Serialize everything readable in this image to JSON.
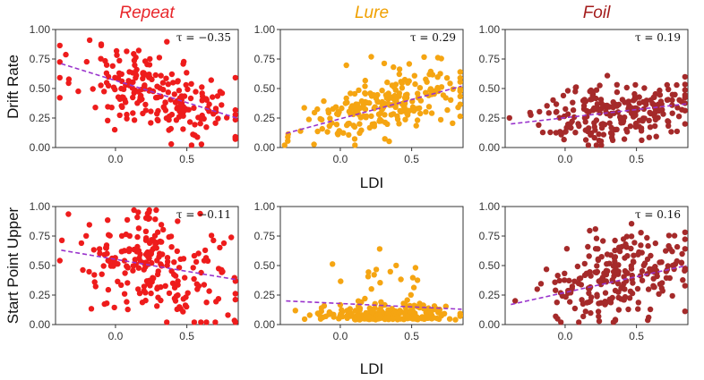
{
  "figure": {
    "row_labels": [
      "Drift Rate",
      "Start Point Upper"
    ],
    "x_label_mid": "LDI",
    "x_label_bottom": "LDI"
  },
  "chart_data": [
    {
      "type": "scatter",
      "row": "Drift Rate",
      "column": "Repeat",
      "title": "Repeat",
      "title_color": "#e8262b",
      "point_color": "#ee1c1c",
      "ylabel": "Drift Rate",
      "xlabel": "",
      "tau_label": "τ = −0.35",
      "xlim": [
        -0.42,
        0.86
      ],
      "ylim": [
        0,
        1
      ],
      "xticks": [
        "0.0",
        "0.5"
      ],
      "yticks": [
        "0.00",
        "0.25",
        "0.50",
        "0.75",
        "1.00"
      ],
      "trend": {
        "x": [
          -0.38,
          0.85
        ],
        "y": [
          0.71,
          0.25
        ]
      },
      "n_points": 220,
      "seed": 11,
      "x_center": 0.3,
      "x_spread": 0.28,
      "noise": 0.17,
      "skew": 0
    },
    {
      "type": "scatter",
      "row": "Drift Rate",
      "column": "Lure",
      "title": "Lure",
      "title_color": "#f0a000",
      "point_color": "#f5a512",
      "ylabel": "",
      "xlabel": "",
      "tau_label": "τ = 0.29",
      "xlim": [
        -0.42,
        0.86
      ],
      "ylim": [
        0,
        1
      ],
      "xticks": [
        "0.0",
        "0.5"
      ],
      "yticks": [
        "0.00",
        "0.25",
        "0.50",
        "0.75",
        "1.00"
      ],
      "trend": {
        "x": [
          -0.38,
          0.85
        ],
        "y": [
          0.12,
          0.52
        ]
      },
      "n_points": 230,
      "seed": 23,
      "x_center": 0.32,
      "x_spread": 0.27,
      "noise": 0.12,
      "skew": 1
    },
    {
      "type": "scatter",
      "row": "Drift Rate",
      "column": "Foil",
      "title": "Foil",
      "title_color": "#a31b1b",
      "point_color": "#a52a2a",
      "ylabel": "",
      "xlabel": "",
      "tau_label": "τ = 0.19",
      "xlim": [
        -0.42,
        0.86
      ],
      "ylim": [
        0,
        1
      ],
      "xticks": [
        "0.0",
        "0.5"
      ],
      "yticks": [
        "0.00",
        "0.25",
        "0.50",
        "0.75",
        "1.00"
      ],
      "trend": {
        "x": [
          -0.38,
          0.85
        ],
        "y": [
          0.2,
          0.37
        ]
      },
      "n_points": 230,
      "seed": 37,
      "x_center": 0.35,
      "x_spread": 0.25,
      "noise": 0.13,
      "skew": 0
    },
    {
      "type": "scatter",
      "row": "Start Point Upper",
      "column": "Repeat",
      "title": "",
      "title_color": "#e8262b",
      "point_color": "#ee1c1c",
      "ylabel": "Start Point Upper",
      "xlabel": "LDI",
      "tau_label": "τ = −0.11",
      "xlim": [
        -0.42,
        0.86
      ],
      "ylim": [
        0,
        1
      ],
      "xticks": [
        "0.0",
        "0.5"
      ],
      "yticks": [
        "0.00",
        "0.25",
        "0.50",
        "0.75",
        "1.00"
      ],
      "trend": {
        "x": [
          -0.38,
          0.85
        ],
        "y": [
          0.63,
          0.38
        ]
      },
      "n_points": 220,
      "seed": 41,
      "x_center": 0.28,
      "x_spread": 0.28,
      "noise": 0.22,
      "skew": 0
    },
    {
      "type": "scatter",
      "row": "Start Point Upper",
      "column": "Lure",
      "title": "",
      "title_color": "#f0a000",
      "point_color": "#f5a512",
      "ylabel": "",
      "xlabel": "LDI",
      "tau_label": "",
      "xlim": [
        -0.42,
        0.86
      ],
      "ylim": [
        0,
        1
      ],
      "xticks": [
        "0.0",
        "0.5"
      ],
      "yticks": [
        "0.00",
        "0.25",
        "0.50",
        "0.75",
        "1.00"
      ],
      "trend": {
        "x": [
          -0.38,
          0.85
        ],
        "y": [
          0.2,
          0.13
        ]
      },
      "n_points": 240,
      "seed": 53,
      "x_center": 0.3,
      "x_spread": 0.25,
      "noise": 0.06,
      "skew": 2
    },
    {
      "type": "scatter",
      "row": "Start Point Upper",
      "column": "Foil",
      "title": "",
      "title_color": "#a31b1b",
      "point_color": "#a52a2a",
      "ylabel": "",
      "xlabel": "",
      "tau_label": "τ = 0.16",
      "xlim": [
        -0.42,
        0.86
      ],
      "ylim": [
        0,
        1
      ],
      "xticks": [
        "0.0",
        "0.5"
      ],
      "yticks": [
        "0.00",
        "0.25",
        "0.50",
        "0.75",
        "1.00"
      ],
      "trend": {
        "x": [
          -0.38,
          0.85
        ],
        "y": [
          0.17,
          0.5
        ]
      },
      "n_points": 230,
      "seed": 67,
      "x_center": 0.35,
      "x_spread": 0.24,
      "noise": 0.18,
      "skew": 0
    }
  ]
}
